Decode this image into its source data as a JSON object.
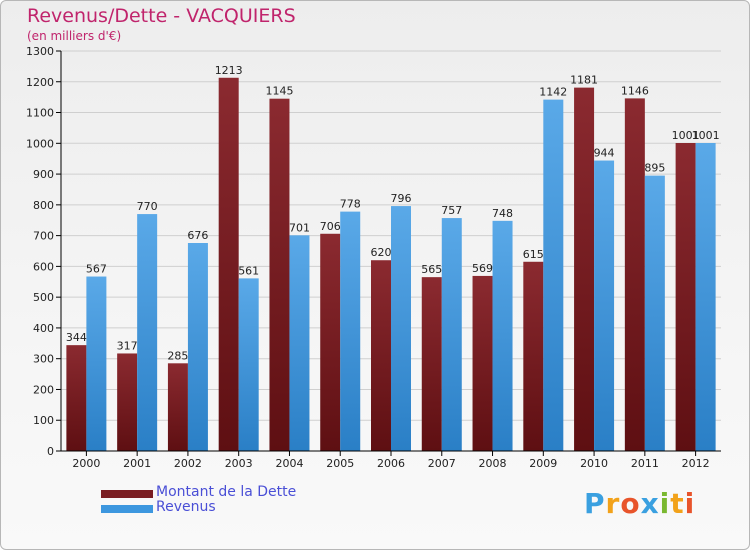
{
  "title": "Revenus/Dette - VACQUIERS",
  "subtitle": "(en milliers d'€)",
  "brand": {
    "text": "Proxiti",
    "letters": [
      {
        "ch": "P",
        "color": "#3aa0e0"
      },
      {
        "ch": "r",
        "color": "#f2a21a"
      },
      {
        "ch": "o",
        "color": "#e8542b"
      },
      {
        "ch": "x",
        "color": "#3aa0e0"
      },
      {
        "ch": "i",
        "color": "#7ab830"
      },
      {
        "ch": "t",
        "color": "#f2a21a"
      },
      {
        "ch": "i",
        "color": "#e8542b"
      }
    ]
  },
  "colors": {
    "dette": "#7a1e22",
    "revenus": "#3d97df",
    "grid": "#cfcfcf",
    "axis": "#000000"
  },
  "chart_data": {
    "type": "bar",
    "title": "Revenus/Dette - VACQUIERS",
    "ylabel": "(en milliers d'€)",
    "xlabel": "",
    "ylim": [
      0,
      1300
    ],
    "yticks": [
      0,
      100,
      200,
      300,
      400,
      500,
      600,
      700,
      800,
      900,
      1000,
      1100,
      1200,
      1300
    ],
    "grid": true,
    "legend_position": "bottom-left",
    "categories": [
      "2000",
      "2001",
      "2002",
      "2003",
      "2004",
      "2005",
      "2006",
      "2007",
      "2008",
      "2009",
      "2010",
      "2011",
      "2012"
    ],
    "series": [
      {
        "name": "Montant de la Dette",
        "values": [
          344,
          317,
          285,
          1213,
          1145,
          706,
          620,
          565,
          569,
          615,
          1181,
          1146,
          1001
        ]
      },
      {
        "name": "Revenus",
        "values": [
          567,
          770,
          676,
          561,
          701,
          778,
          796,
          757,
          748,
          1142,
          944,
          895,
          1001
        ]
      }
    ]
  }
}
